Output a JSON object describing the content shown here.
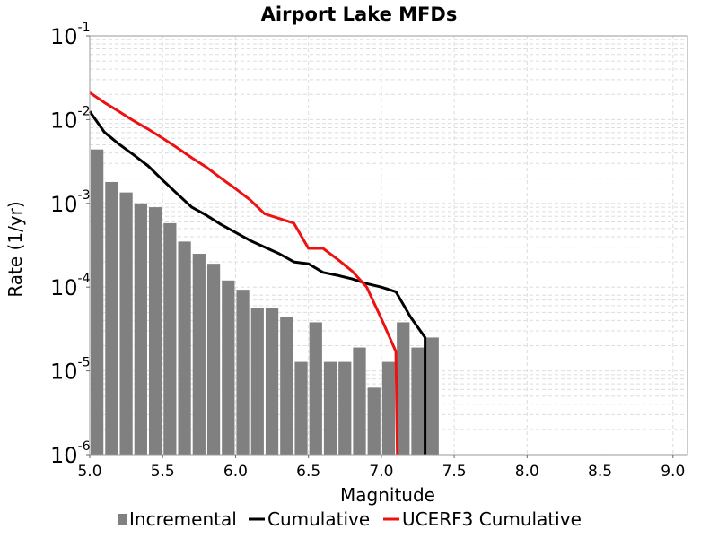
{
  "chart_data": {
    "type": "bar+line",
    "title": "Airport Lake MFDs",
    "xlabel": "Magnitude",
    "ylabel": "Rate (1/yr)",
    "xlim": [
      5.0,
      9.1
    ],
    "ylim": [
      1e-06,
      0.1
    ],
    "yscale": "log",
    "grid": true,
    "legend_position": "bottom",
    "x_ticks": [
      "5.0",
      "5.5",
      "6.0",
      "6.5",
      "7.0",
      "7.5",
      "8.0",
      "8.5",
      "9.0"
    ],
    "y_ticks": [
      {
        "base": "10",
        "exp": "-1"
      },
      {
        "base": "10",
        "exp": "-2"
      },
      {
        "base": "10",
        "exp": "-3"
      },
      {
        "base": "10",
        "exp": "-4"
      },
      {
        "base": "10",
        "exp": "-5"
      },
      {
        "base": "10",
        "exp": "-6"
      }
    ],
    "bar_width": 0.1,
    "series": [
      {
        "name": "Incremental",
        "kind": "bar",
        "color": "#808080",
        "x": [
          5.05,
          5.15,
          5.25,
          5.35,
          5.45,
          5.55,
          5.65,
          5.75,
          5.85,
          5.95,
          6.05,
          6.15,
          6.25,
          6.35,
          6.45,
          6.55,
          6.65,
          6.75,
          6.85,
          6.95,
          7.05,
          7.15,
          7.25,
          7.35
        ],
        "y": [
          0.0044,
          0.0018,
          0.00135,
          0.001,
          0.0009,
          0.00058,
          0.00035,
          0.00025,
          0.00019,
          0.00012,
          9.3e-05,
          5.6e-05,
          5.6e-05,
          4.4e-05,
          1.28e-05,
          3.8e-05,
          1.28e-05,
          1.28e-05,
          1.9e-05,
          6.3e-06,
          1.28e-05,
          3.8e-05,
          1.9e-05,
          2.5e-05
        ]
      },
      {
        "name": "Cumulative",
        "kind": "line",
        "color": "#000000",
        "x": [
          5.0,
          5.1,
          5.2,
          5.3,
          5.4,
          5.5,
          5.6,
          5.7,
          5.8,
          5.9,
          6.0,
          6.1,
          6.2,
          6.3,
          6.4,
          6.5,
          6.6,
          6.7,
          6.8,
          6.9,
          7.0,
          7.1,
          7.2,
          7.3,
          7.3
        ],
        "y": [
          0.0125,
          0.0071,
          0.0051,
          0.0038,
          0.0028,
          0.0019,
          0.0013,
          0.0009,
          0.00072,
          0.00056,
          0.00045,
          0.00036,
          0.0003,
          0.00025,
          0.0002,
          0.00019,
          0.00015,
          0.000138,
          0.000125,
          0.00011,
          0.0001,
          8.8e-05,
          4.4e-05,
          2.5e-05,
          1e-06
        ]
      },
      {
        "name": "UCERF3 Cumulative",
        "kind": "line",
        "color": "#ee1111",
        "x": [
          5.0,
          5.1,
          5.2,
          5.3,
          5.4,
          5.5,
          5.6,
          5.7,
          5.8,
          5.9,
          6.0,
          6.1,
          6.2,
          6.3,
          6.4,
          6.5,
          6.6,
          6.7,
          6.8,
          6.9,
          7.0,
          7.1,
          7.11
        ],
        "y": [
          0.021,
          0.016,
          0.0125,
          0.0097,
          0.0077,
          0.006,
          0.0046,
          0.0035,
          0.0027,
          0.002,
          0.0015,
          0.0011,
          0.00075,
          0.00066,
          0.00058,
          0.00029,
          0.00029,
          0.000215,
          0.000155,
          0.0001,
          4.2e-05,
          1.7e-05,
          1e-06
        ]
      }
    ]
  }
}
